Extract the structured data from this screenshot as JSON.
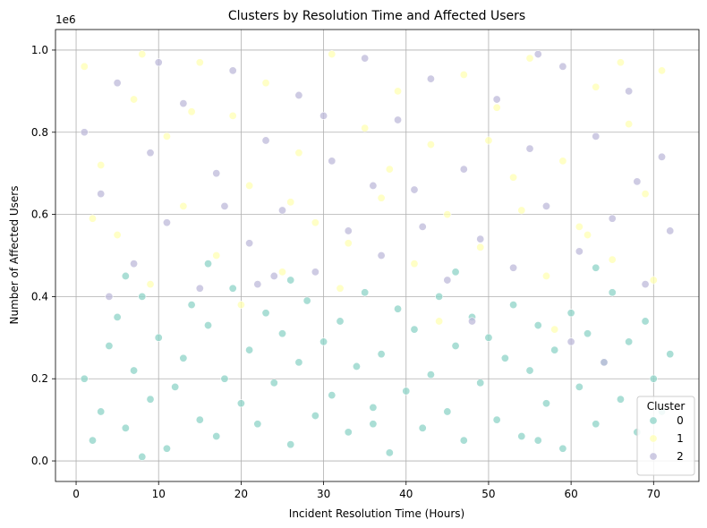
{
  "chart_data": {
    "type": "scatter",
    "title": "Clusters by Resolution Time and Affected Users",
    "xlabel": "Incident Resolution Time (Hours)",
    "ylabel": "Number of Affected Users",
    "y_offset_label": "1e6",
    "xlim": [
      -2.5,
      75.5
    ],
    "ylim": [
      -0.05,
      1.05
    ],
    "x_ticks": [
      0,
      10,
      20,
      30,
      40,
      50,
      60,
      70
    ],
    "x_tick_labels": [
      "0",
      "10",
      "20",
      "30",
      "40",
      "50",
      "60",
      "70"
    ],
    "y_ticks": [
      0.0,
      0.2,
      0.4,
      0.6,
      0.8,
      1.0
    ],
    "y_tick_labels": [
      "0.0",
      "0.2",
      "0.4",
      "0.6",
      "0.8",
      "1.0"
    ],
    "grid": true,
    "legend": {
      "title": "Cluster",
      "placement": "bottom-right"
    },
    "series": [
      {
        "name": "0",
        "color": "#8dd3c7",
        "points": [
          [
            2,
            0.05
          ],
          [
            3,
            0.12
          ],
          [
            4,
            0.28
          ],
          [
            5,
            0.35
          ],
          [
            6,
            0.08
          ],
          [
            7,
            0.22
          ],
          [
            8,
            0.4
          ],
          [
            9,
            0.15
          ],
          [
            10,
            0.3
          ],
          [
            11,
            0.03
          ],
          [
            12,
            0.18
          ],
          [
            13,
            0.25
          ],
          [
            14,
            0.38
          ],
          [
            15,
            0.1
          ],
          [
            16,
            0.33
          ],
          [
            17,
            0.06
          ],
          [
            18,
            0.2
          ],
          [
            19,
            0.42
          ],
          [
            20,
            0.14
          ],
          [
            21,
            0.27
          ],
          [
            22,
            0.09
          ],
          [
            23,
            0.36
          ],
          [
            24,
            0.19
          ],
          [
            25,
            0.31
          ],
          [
            26,
            0.04
          ],
          [
            27,
            0.24
          ],
          [
            28,
            0.39
          ],
          [
            29,
            0.11
          ],
          [
            30,
            0.29
          ],
          [
            31,
            0.16
          ],
          [
            32,
            0.34
          ],
          [
            33,
            0.07
          ],
          [
            34,
            0.23
          ],
          [
            35,
            0.41
          ],
          [
            36,
            0.13
          ],
          [
            37,
            0.26
          ],
          [
            38,
            0.02
          ],
          [
            39,
            0.37
          ],
          [
            40,
            0.17
          ],
          [
            41,
            0.32
          ],
          [
            42,
            0.08
          ],
          [
            43,
            0.21
          ],
          [
            44,
            0.4
          ],
          [
            45,
            0.12
          ],
          [
            46,
            0.28
          ],
          [
            47,
            0.05
          ],
          [
            48,
            0.35
          ],
          [
            49,
            0.19
          ],
          [
            50,
            0.3
          ],
          [
            51,
            0.1
          ],
          [
            52,
            0.25
          ],
          [
            53,
            0.38
          ],
          [
            54,
            0.06
          ],
          [
            55,
            0.22
          ],
          [
            56,
            0.33
          ],
          [
            57,
            0.14
          ],
          [
            58,
            0.27
          ],
          [
            59,
            0.03
          ],
          [
            60,
            0.36
          ],
          [
            61,
            0.18
          ],
          [
            62,
            0.31
          ],
          [
            63,
            0.09
          ],
          [
            64,
            0.24
          ],
          [
            65,
            0.41
          ],
          [
            66,
            0.15
          ],
          [
            67,
            0.29
          ],
          [
            68,
            0.07
          ],
          [
            69,
            0.34
          ],
          [
            70,
            0.2
          ],
          [
            71,
            0.12
          ],
          [
            1,
            0.2
          ],
          [
            6,
            0.45
          ],
          [
            16,
            0.48
          ],
          [
            26,
            0.44
          ],
          [
            46,
            0.46
          ],
          [
            63,
            0.47
          ],
          [
            72,
            0.26
          ],
          [
            36,
            0.09
          ],
          [
            56,
            0.05
          ],
          [
            8,
            0.01
          ]
        ]
      },
      {
        "name": "1",
        "color": "#ffffb3",
        "points": [
          [
            1,
            0.96
          ],
          [
            3,
            0.72
          ],
          [
            5,
            0.55
          ],
          [
            7,
            0.88
          ],
          [
            9,
            0.43
          ],
          [
            11,
            0.79
          ],
          [
            13,
            0.62
          ],
          [
            15,
            0.97
          ],
          [
            17,
            0.5
          ],
          [
            19,
            0.84
          ],
          [
            21,
            0.67
          ],
          [
            23,
            0.92
          ],
          [
            25,
            0.46
          ],
          [
            27,
            0.75
          ],
          [
            29,
            0.58
          ],
          [
            31,
            0.99
          ],
          [
            33,
            0.53
          ],
          [
            35,
            0.81
          ],
          [
            37,
            0.64
          ],
          [
            39,
            0.9
          ],
          [
            41,
            0.48
          ],
          [
            43,
            0.77
          ],
          [
            45,
            0.6
          ],
          [
            47,
            0.94
          ],
          [
            49,
            0.52
          ],
          [
            51,
            0.86
          ],
          [
            53,
            0.69
          ],
          [
            55,
            0.98
          ],
          [
            57,
            0.45
          ],
          [
            59,
            0.73
          ],
          [
            61,
            0.57
          ],
          [
            63,
            0.91
          ],
          [
            65,
            0.49
          ],
          [
            67,
            0.82
          ],
          [
            69,
            0.65
          ],
          [
            71,
            0.95
          ],
          [
            2,
            0.59
          ],
          [
            14,
            0.85
          ],
          [
            26,
            0.63
          ],
          [
            38,
            0.71
          ],
          [
            50,
            0.78
          ],
          [
            62,
            0.55
          ],
          [
            70,
            0.44
          ],
          [
            44,
            0.34
          ],
          [
            58,
            0.32
          ],
          [
            20,
            0.38
          ],
          [
            8,
            0.99
          ],
          [
            32,
            0.42
          ],
          [
            66,
            0.97
          ],
          [
            54,
            0.61
          ]
        ]
      },
      {
        "name": "2",
        "color": "#bebada",
        "points": [
          [
            1,
            0.8
          ],
          [
            3,
            0.65
          ],
          [
            5,
            0.92
          ],
          [
            7,
            0.48
          ],
          [
            9,
            0.75
          ],
          [
            11,
            0.58
          ],
          [
            13,
            0.87
          ],
          [
            15,
            0.42
          ],
          [
            17,
            0.7
          ],
          [
            19,
            0.95
          ],
          [
            21,
            0.53
          ],
          [
            23,
            0.78
          ],
          [
            25,
            0.61
          ],
          [
            27,
            0.89
          ],
          [
            29,
            0.46
          ],
          [
            31,
            0.73
          ],
          [
            33,
            0.56
          ],
          [
            35,
            0.98
          ],
          [
            37,
            0.5
          ],
          [
            39,
            0.83
          ],
          [
            41,
            0.66
          ],
          [
            43,
            0.93
          ],
          [
            45,
            0.44
          ],
          [
            47,
            0.71
          ],
          [
            49,
            0.54
          ],
          [
            51,
            0.88
          ],
          [
            53,
            0.47
          ],
          [
            55,
            0.76
          ],
          [
            57,
            0.62
          ],
          [
            59,
            0.96
          ],
          [
            61,
            0.51
          ],
          [
            63,
            0.79
          ],
          [
            65,
            0.59
          ],
          [
            67,
            0.9
          ],
          [
            69,
            0.43
          ],
          [
            71,
            0.74
          ],
          [
            4,
            0.4
          ],
          [
            18,
            0.62
          ],
          [
            30,
            0.84
          ],
          [
            42,
            0.57
          ],
          [
            56,
            0.99
          ],
          [
            68,
            0.68
          ],
          [
            72,
            0.56
          ],
          [
            10,
            0.97
          ],
          [
            24,
            0.45
          ],
          [
            36,
            0.67
          ],
          [
            48,
            0.34
          ],
          [
            60,
            0.29
          ],
          [
            64,
            0.24
          ],
          [
            22,
            0.43
          ]
        ]
      }
    ]
  }
}
